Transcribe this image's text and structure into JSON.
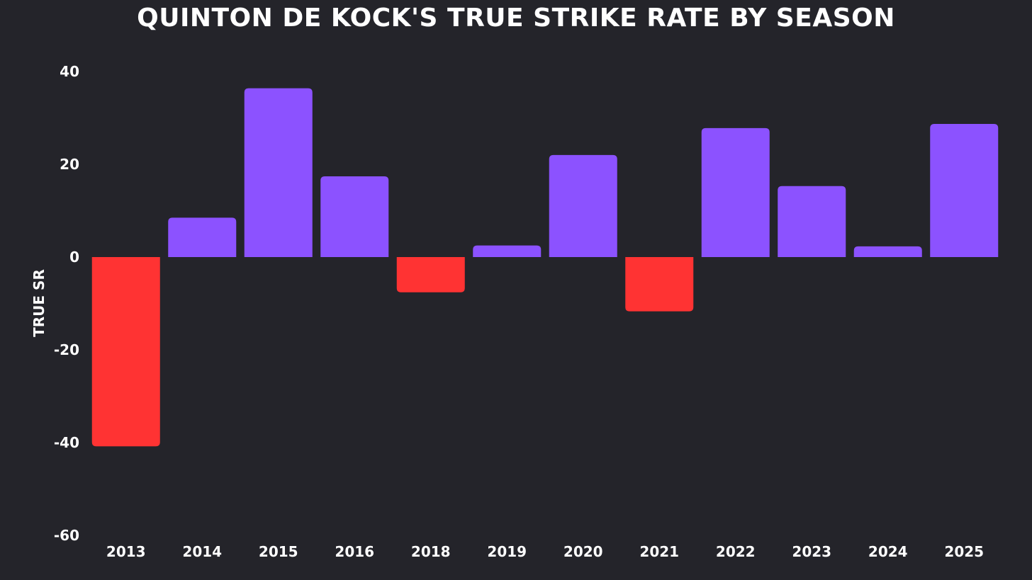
{
  "chart_data": {
    "type": "bar",
    "title": "QUINTON DE KOCK'S TRUE STRIKE RATE BY SEASON",
    "xlabel": "",
    "ylabel": "TRUE SR",
    "categories": [
      "2013",
      "2014",
      "2015",
      "2016",
      "2018",
      "2019",
      "2020",
      "2021",
      "2022",
      "2023",
      "2024",
      "2025"
    ],
    "values": [
      -40.8,
      8.5,
      36.4,
      17.4,
      -7.6,
      2.5,
      22.0,
      -11.7,
      27.8,
      15.3,
      2.3,
      28.7
    ],
    "ylim": [
      -60,
      40
    ],
    "yticks": [
      "-60",
      "-40",
      "-20",
      "0",
      "20",
      "40"
    ],
    "ytick_values": [
      -60,
      -40,
      -20,
      0,
      20,
      40
    ],
    "grid": false,
    "legend": "none",
    "colors": {
      "positive": "#8c52ff",
      "negative": "#ff3333",
      "background": "#24242a",
      "text": "#ffffff"
    }
  }
}
